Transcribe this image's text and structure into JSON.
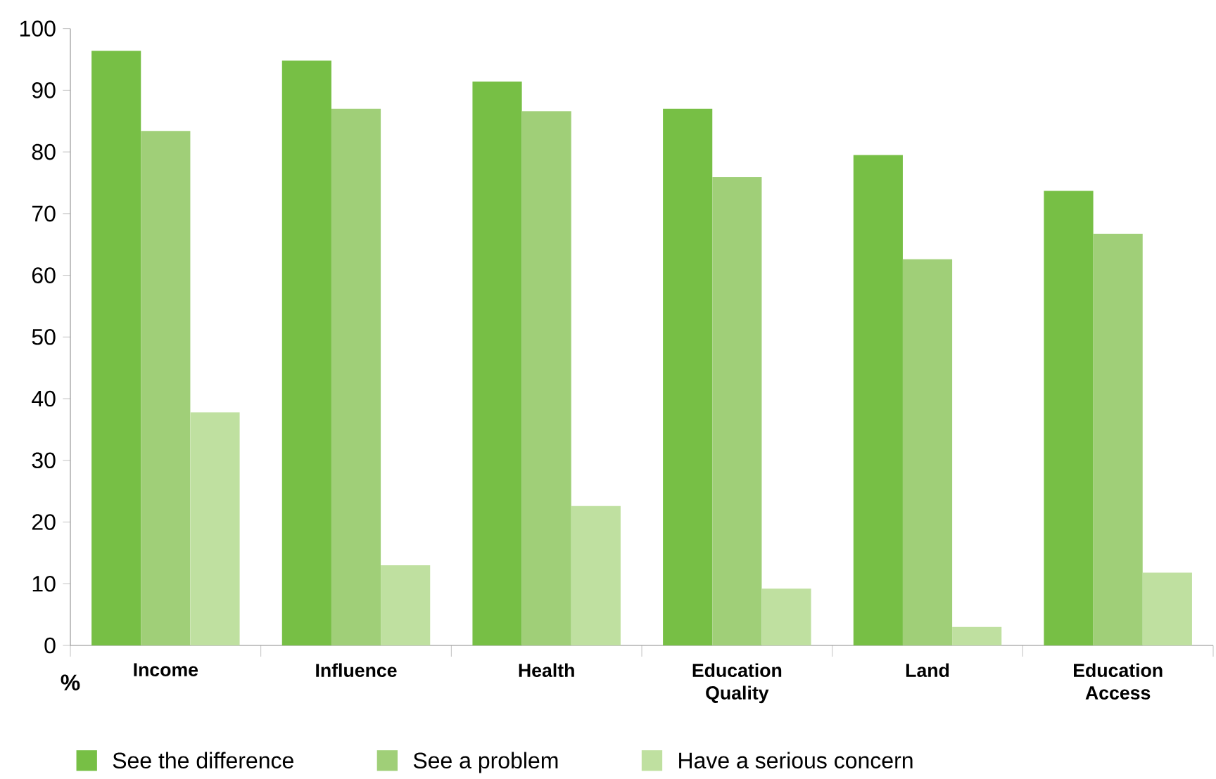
{
  "chart_data": {
    "type": "bar",
    "ylabel": "%",
    "categories": [
      "Income",
      "Influence",
      "Health",
      "Education Quality",
      "Land",
      "Education Access"
    ],
    "series": [
      {
        "name": "See the difference",
        "color": "#77bf45",
        "values": [
          96.4,
          94.8,
          91.4,
          87,
          79.5,
          73.7
        ]
      },
      {
        "name": "See a problem",
        "color": "#a0cf78",
        "values": [
          83.4,
          87,
          86.6,
          75.9,
          62.6,
          66.7
        ]
      },
      {
        "name": "Have a serious concern",
        "color": "#bfe0a0",
        "values": [
          37.8,
          13,
          22.6,
          9.2,
          3,
          11.8
        ]
      }
    ],
    "ylim": [
      0,
      100
    ],
    "yticks": [
      0,
      10,
      20,
      30,
      40,
      50,
      60,
      70,
      80,
      90,
      100
    ],
    "grid": false,
    "legend": "bottom"
  }
}
